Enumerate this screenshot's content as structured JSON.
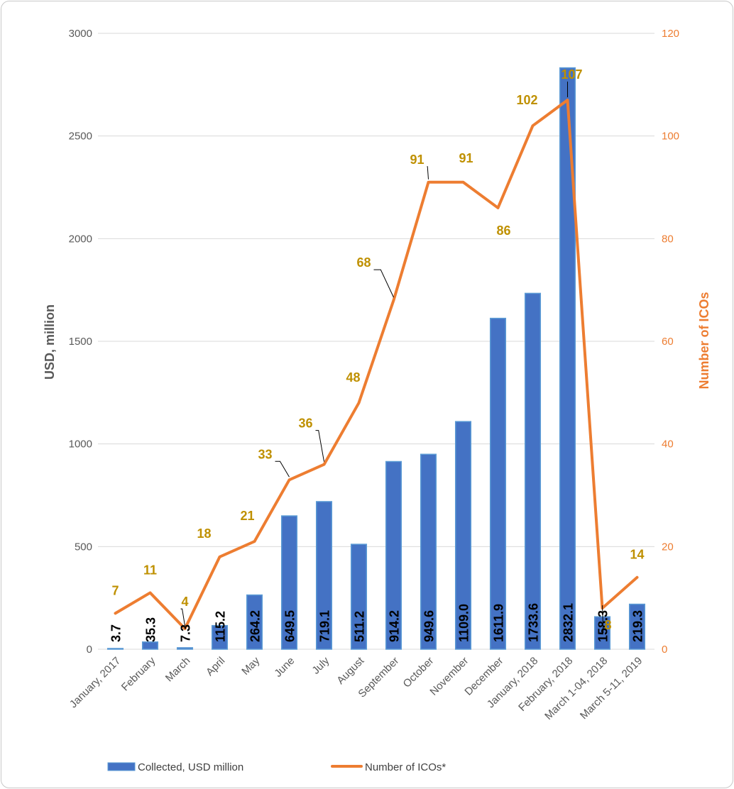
{
  "chart_data": {
    "type": "bar",
    "categories": [
      "January, 2017",
      "February",
      "March",
      "April",
      "May",
      "June",
      "July",
      "August",
      "September",
      "October",
      "November",
      "December",
      "January, 2018",
      "February, 2018",
      "March 1-04, 2018",
      "March 5-11, 2019"
    ],
    "series": [
      {
        "name": "Collected, USD million",
        "type": "bar",
        "axis": "left",
        "color": "#4472c4",
        "values": [
          3.7,
          35.3,
          7.3,
          115.2,
          264.2,
          649.5,
          719.1,
          511.2,
          914.2,
          949.6,
          1109.0,
          1611.9,
          1733.6,
          2832.1,
          158.3,
          219.3
        ],
        "labels": [
          "3.7",
          "35.3",
          "7.3",
          "115.2",
          "264.2",
          "649.5",
          "719.1",
          "511.2",
          "914.2",
          "949.6",
          "1109.0",
          "1611.9",
          "1733.6",
          "2832.1",
          "158.3",
          "219.3"
        ]
      },
      {
        "name": "Number of ICOs*",
        "type": "line",
        "axis": "right",
        "color": "#ed7d31",
        "values": [
          7,
          11,
          4,
          18,
          21,
          33,
          36,
          48,
          68,
          91,
          91,
          86,
          102,
          107,
          8,
          14
        ],
        "labels": [
          "7",
          "11",
          "4",
          "18",
          "21",
          "33",
          "36",
          "48",
          "68",
          "91",
          "91",
          "86",
          "102",
          "107",
          "8",
          "14"
        ]
      }
    ],
    "ylabel": "USD, million",
    "y2label": "Number of ICOs",
    "ylim": [
      0,
      3000
    ],
    "y2lim": [
      0,
      120
    ],
    "yticks": [
      "0",
      "500",
      "1000",
      "1500",
      "2000",
      "2500",
      "3000"
    ],
    "y2ticks": [
      "0",
      "20",
      "40",
      "60",
      "80",
      "100",
      "120"
    ],
    "grid": true,
    "legend_position": "bottom"
  }
}
